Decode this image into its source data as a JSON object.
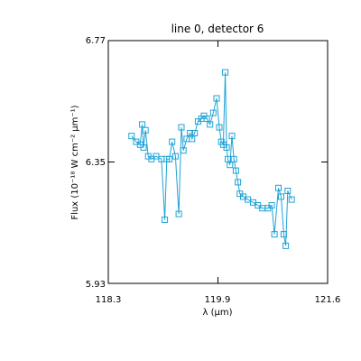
{
  "chart_data": {
    "type": "scatter",
    "title": "line 0, detector 6",
    "xlabel": "λ (μm)",
    "ylabel": "Flux (10⁻¹⁸ W cm⁻² μm⁻¹)",
    "xlim": [
      118.3,
      121.6
    ],
    "ylim": [
      5.93,
      6.77
    ],
    "xticks": [
      "118.3",
      "119.9",
      "121.6"
    ],
    "yticks": [
      "5.93",
      "6.35",
      "6.77"
    ],
    "grid": false,
    "color": "#1fa3d6",
    "marker": "open-square",
    "connected": true,
    "series": [
      {
        "x": [
          118.65,
          118.72,
          118.78,
          118.81,
          118.83,
          118.86,
          118.9,
          118.95,
          119.02,
          119.1,
          119.15,
          119.18,
          119.22,
          119.26,
          119.31,
          119.36,
          119.4,
          119.43,
          119.48,
          119.53,
          119.56,
          119.6,
          119.65,
          119.7,
          119.74,
          119.78,
          119.83,
          119.88,
          119.93,
          119.97,
          120.0,
          120.03,
          120.06,
          120.08,
          120.1,
          120.13,
          120.16,
          120.19,
          120.22,
          120.25,
          120.28,
          120.33,
          120.4,
          120.48,
          120.55,
          120.62,
          120.7,
          120.76,
          120.8,
          120.86,
          120.9,
          120.94,
          120.97,
          121.0,
          121.06
        ],
        "y": [
          6.44,
          6.42,
          6.41,
          6.48,
          6.4,
          6.46,
          6.37,
          6.36,
          6.37,
          6.36,
          6.15,
          6.36,
          6.36,
          6.42,
          6.37,
          6.17,
          6.47,
          6.39,
          6.43,
          6.45,
          6.43,
          6.45,
          6.49,
          6.5,
          6.51,
          6.5,
          6.48,
          6.52,
          6.57,
          6.47,
          6.42,
          6.41,
          6.66,
          6.4,
          6.36,
          6.34,
          6.44,
          6.36,
          6.32,
          6.28,
          6.24,
          6.23,
          6.22,
          6.21,
          6.2,
          6.19,
          6.19,
          6.2,
          6.1,
          6.26,
          6.23,
          6.1,
          6.06,
          6.25,
          6.22
        ]
      }
    ]
  }
}
